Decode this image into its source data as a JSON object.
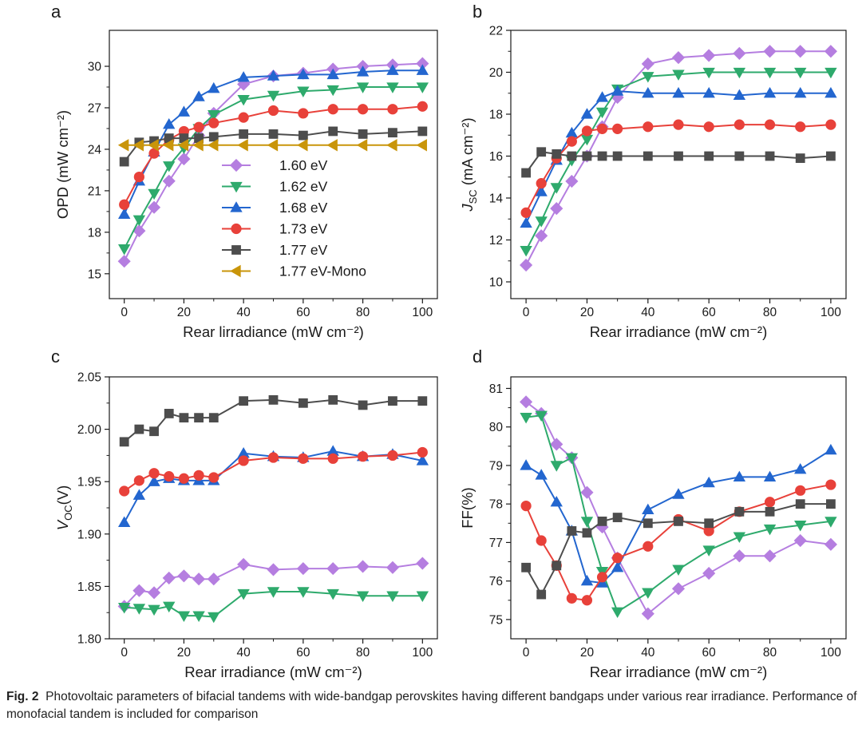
{
  "styles": {
    "1.60 eV": {
      "color": "#b57ee0",
      "marker": "diamond"
    },
    "1.62 eV": {
      "color": "#2eaa6c",
      "marker": "tri-down"
    },
    "1.68 eV": {
      "color": "#2366cf",
      "marker": "tri-up"
    },
    "1.73 eV": {
      "color": "#e8413a",
      "marker": "circle"
    },
    "1.77 eV": {
      "color": "#4d4d4d",
      "marker": "square"
    },
    "1.77 eV-Mono": {
      "color": "#c9950a",
      "marker": "tri-left"
    }
  },
  "chart_data": [
    {
      "type": "line",
      "panel": "a",
      "xlabel": "Rear lirradiance (mW cm⁻²)",
      "ylabel": "OPD (mW cm⁻²)",
      "xlim": [
        -5,
        105
      ],
      "ylim": [
        13.2,
        32.6
      ],
      "xticks": [
        0,
        20,
        40,
        60,
        80,
        100
      ],
      "yticks": [
        15,
        18,
        21,
        24,
        27,
        30
      ],
      "ytick_labels": [
        "15",
        "18",
        "21",
        "24",
        "27",
        "30"
      ],
      "legend": "center",
      "x": [
        0,
        5,
        10,
        15,
        20,
        25,
        30,
        40,
        50,
        60,
        70,
        80,
        90,
        100
      ],
      "series": [
        {
          "name": "1.60 eV",
          "values": [
            15.9,
            18.1,
            19.8,
            21.7,
            23.3,
            25.0,
            26.6,
            28.7,
            29.3,
            29.5,
            29.8,
            30.0,
            30.1,
            30.2
          ]
        },
        {
          "name": "1.62 eV",
          "values": [
            16.8,
            18.9,
            20.8,
            22.8,
            24.1,
            25.5,
            26.5,
            27.6,
            27.9,
            28.2,
            28.3,
            28.5,
            28.5,
            28.5
          ]
        },
        {
          "name": "1.68 eV",
          "values": [
            19.3,
            21.7,
            23.8,
            25.8,
            26.7,
            27.8,
            28.4,
            29.2,
            29.3,
            29.4,
            29.4,
            29.6,
            29.7,
            29.7
          ]
        },
        {
          "name": "1.73 eV",
          "values": [
            20.0,
            22.0,
            23.7,
            24.7,
            25.3,
            25.6,
            25.9,
            26.3,
            26.8,
            26.6,
            26.9,
            26.9,
            26.9,
            27.1
          ]
        },
        {
          "name": "1.77 eV",
          "values": [
            23.1,
            24.5,
            24.6,
            24.8,
            24.8,
            24.8,
            24.9,
            25.1,
            25.1,
            25.0,
            25.3,
            25.1,
            25.2,
            25.3
          ]
        },
        {
          "name": "1.77 eV-Mono",
          "values": [
            24.3,
            24.3,
            24.3,
            24.3,
            24.3,
            24.3,
            24.3,
            24.3,
            24.3,
            24.3,
            24.3,
            24.3,
            24.3,
            24.3
          ]
        }
      ]
    },
    {
      "type": "line",
      "panel": "b",
      "xlabel": "Rear irradiance (mW cm⁻²)",
      "ylabel": "J_SC (mA cm⁻²)",
      "xlim": [
        -5,
        105
      ],
      "ylim": [
        9.2,
        22
      ],
      "xticks": [
        0,
        20,
        40,
        60,
        80,
        100
      ],
      "yticks": [
        10,
        12,
        14,
        16,
        18,
        20,
        22
      ],
      "ytick_labels": [
        "10",
        "12",
        "14",
        "16",
        "18",
        "20",
        "22"
      ],
      "x": [
        0,
        5,
        10,
        15,
        20,
        25,
        30,
        40,
        50,
        60,
        70,
        80,
        90,
        100
      ],
      "series": [
        {
          "name": "1.60 eV",
          "values": [
            10.8,
            12.2,
            13.5,
            14.8,
            16.0,
            17.4,
            18.8,
            20.4,
            20.7,
            20.8,
            20.9,
            21.0,
            21.0,
            21.0
          ]
        },
        {
          "name": "1.62 eV",
          "values": [
            11.5,
            12.9,
            14.5,
            15.8,
            16.8,
            18.1,
            19.2,
            19.8,
            19.9,
            20.0,
            20.0,
            20.0,
            20.0,
            20.0
          ]
        },
        {
          "name": "1.68 eV",
          "values": [
            12.8,
            14.3,
            15.8,
            17.1,
            18.0,
            18.8,
            19.1,
            19.0,
            19.0,
            19.0,
            18.9,
            19.0,
            19.0,
            19.0
          ]
        },
        {
          "name": "1.73 eV",
          "values": [
            13.3,
            14.7,
            15.9,
            16.7,
            17.2,
            17.3,
            17.3,
            17.4,
            17.5,
            17.4,
            17.5,
            17.5,
            17.4,
            17.5
          ]
        },
        {
          "name": "1.77 eV",
          "values": [
            15.2,
            16.2,
            16.1,
            16.0,
            16.0,
            16.0,
            16.0,
            16.0,
            16.0,
            16.0,
            16.0,
            16.0,
            15.9,
            16.0
          ]
        }
      ]
    },
    {
      "type": "line",
      "panel": "c",
      "xlabel": "Rear irradiance (mW cm⁻²)",
      "ylabel": "V_OC(V)",
      "xlim": [
        -5,
        105
      ],
      "ylim": [
        1.8,
        2.05
      ],
      "xticks": [
        0,
        20,
        40,
        60,
        80,
        100
      ],
      "yticks": [
        1.8,
        1.85,
        1.9,
        1.95,
        2.0,
        2.05
      ],
      "ytick_labels": [
        "1.80",
        "1.85",
        "1.90",
        "1.95",
        "2.00",
        "2.05"
      ],
      "x": [
        0,
        5,
        10,
        15,
        20,
        25,
        30,
        40,
        50,
        60,
        70,
        80,
        90,
        100
      ],
      "series": [
        {
          "name": "1.60 eV",
          "values": [
            1.831,
            1.846,
            1.844,
            1.858,
            1.86,
            1.857,
            1.857,
            1.871,
            1.866,
            1.867,
            1.867,
            1.869,
            1.868,
            1.872
          ]
        },
        {
          "name": "1.62 eV",
          "values": [
            1.83,
            1.829,
            1.828,
            1.831,
            1.822,
            1.822,
            1.821,
            1.843,
            1.845,
            1.845,
            1.843,
            1.841,
            1.841,
            1.841
          ]
        },
        {
          "name": "1.68 eV",
          "values": [
            1.911,
            1.937,
            1.95,
            1.953,
            1.951,
            1.951,
            1.951,
            1.977,
            1.974,
            1.973,
            1.979,
            1.974,
            1.976,
            1.97
          ]
        },
        {
          "name": "1.73 eV",
          "values": [
            1.941,
            1.951,
            1.958,
            1.955,
            1.953,
            1.956,
            1.954,
            1.97,
            1.973,
            1.972,
            1.972,
            1.974,
            1.975,
            1.978
          ]
        },
        {
          "name": "1.77 eV",
          "values": [
            1.988,
            2.0,
            1.998,
            2.015,
            2.011,
            2.011,
            2.011,
            2.027,
            2.028,
            2.025,
            2.028,
            2.023,
            2.027,
            2.027
          ]
        }
      ]
    },
    {
      "type": "line",
      "panel": "d",
      "xlabel": "Rear irradiance (mW cm⁻²)",
      "ylabel": "FF(%)",
      "xlim": [
        -5,
        105
      ],
      "ylim": [
        74.5,
        81.3
      ],
      "xticks": [
        0,
        20,
        40,
        60,
        80,
        100
      ],
      "yticks": [
        75,
        76,
        77,
        78,
        79,
        80,
        81
      ],
      "ytick_labels": [
        "75",
        "76",
        "77",
        "78",
        "79",
        "80",
        "81"
      ],
      "x": [
        0,
        5,
        10,
        15,
        20,
        25,
        30,
        40,
        50,
        60,
        70,
        80,
        90,
        100
      ],
      "series": [
        {
          "name": "1.60 eV",
          "values": [
            80.65,
            80.35,
            79.55,
            79.2,
            78.3,
            77.4,
            76.6,
            75.15,
            75.8,
            76.2,
            76.65,
            76.65,
            77.05,
            76.95
          ]
        },
        {
          "name": "1.62 eV",
          "values": [
            80.25,
            80.3,
            79.0,
            79.2,
            77.55,
            76.25,
            75.2,
            75.7,
            76.3,
            76.8,
            77.15,
            77.35,
            77.45,
            77.55
          ]
        },
        {
          "name": "1.68 eV",
          "values": [
            79.0,
            78.75,
            78.05,
            77.3,
            76.0,
            75.95,
            76.35,
            77.85,
            78.25,
            78.55,
            78.7,
            78.7,
            78.9,
            79.4
          ]
        },
        {
          "name": "1.73 eV",
          "values": [
            77.95,
            77.05,
            76.4,
            75.55,
            75.5,
            76.1,
            76.6,
            76.9,
            77.6,
            77.3,
            77.8,
            78.05,
            78.35,
            78.5
          ]
        },
        {
          "name": "1.77 eV",
          "values": [
            76.35,
            75.65,
            76.4,
            77.3,
            77.25,
            77.55,
            77.65,
            77.5,
            77.55,
            77.5,
            77.8,
            77.8,
            78.0,
            78.0
          ]
        }
      ]
    }
  ],
  "panels": [
    {
      "letter": "a"
    },
    {
      "letter": "b"
    },
    {
      "letter": "c"
    },
    {
      "letter": "d"
    }
  ],
  "caption": {
    "label": "Fig. 2",
    "text": "Photovoltaic parameters of bifacial tandems with wide-bandgap perovskites having different bandgaps under various rear irradiance. Performance of monofacial tandem is included for comparison"
  }
}
